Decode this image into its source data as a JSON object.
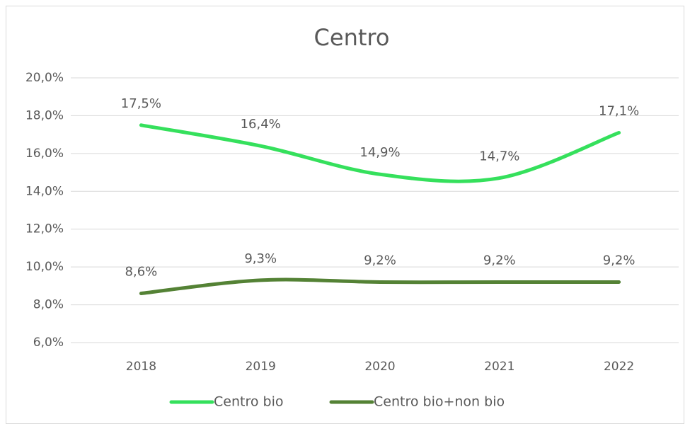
{
  "chart_data": {
    "type": "line",
    "title": "Centro",
    "categories": [
      "2018",
      "2019",
      "2020",
      "2021",
      "2022"
    ],
    "series": [
      {
        "name": "Centro bio",
        "color": "#35e05c",
        "values": [
          17.5,
          16.4,
          14.9,
          14.7,
          17.1
        ],
        "value_labels": [
          "17,5%",
          "16,4%",
          "14,9%",
          "14,7%",
          "17,1%"
        ]
      },
      {
        "name": "Centro bio+non bio",
        "color": "#548235",
        "values": [
          8.6,
          9.3,
          9.2,
          9.2,
          9.2
        ],
        "value_labels": [
          "8,6%",
          "9,3%",
          "9,2%",
          "9,2%",
          "9,2%"
        ]
      }
    ],
    "ylim": [
      6,
      20
    ],
    "yticks": [
      {
        "value": 6,
        "label": "6,0%"
      },
      {
        "value": 8,
        "label": "8,0%"
      },
      {
        "value": 10,
        "label": "10,0%"
      },
      {
        "value": 12,
        "label": "12,0%"
      },
      {
        "value": 14,
        "label": "14,0%"
      },
      {
        "value": 16,
        "label": "16,0%"
      },
      {
        "value": 18,
        "label": "18,0%"
      },
      {
        "value": 20,
        "label": "20,0%"
      }
    ],
    "grid": true,
    "smooth": true,
    "legend": "bottom"
  }
}
